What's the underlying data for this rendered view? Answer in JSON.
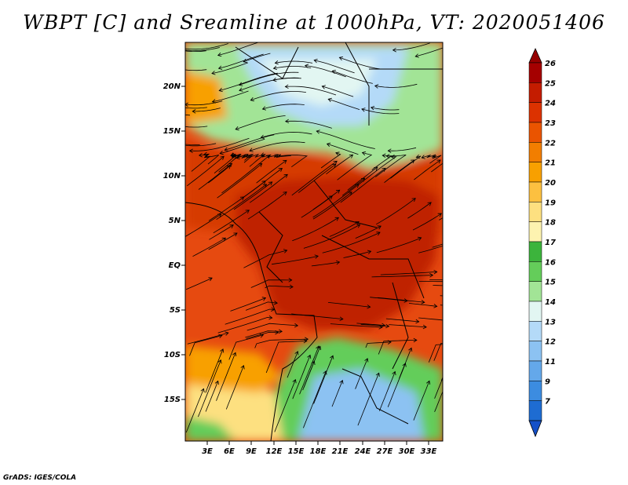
{
  "title": "WBPT [C] and Sreamline at 1000hPa, VT: 2020051406",
  "credit": "GrADS: IGES/COLA",
  "map": {
    "lat_labels": [
      "20N",
      "15N",
      "10N",
      "5N",
      "EQ",
      "5S",
      "10S",
      "15S"
    ],
    "lon_labels": [
      "3E",
      "6E",
      "9E",
      "12E",
      "15E",
      "18E",
      "21E",
      "24E",
      "27E",
      "30E",
      "33E"
    ]
  },
  "colorbar": {
    "levels": [
      {
        "label": "26",
        "color": "#a50000"
      },
      {
        "label": "25",
        "color": "#c41c00"
      },
      {
        "label": "24",
        "color": "#dc3200"
      },
      {
        "label": "23",
        "color": "#ea5400"
      },
      {
        "label": "22",
        "color": "#f27e00"
      },
      {
        "label": "21",
        "color": "#f8a000"
      },
      {
        "label": "20",
        "color": "#fcc040"
      },
      {
        "label": "19",
        "color": "#fde080"
      },
      {
        "label": "18",
        "color": "#fdf3b0"
      },
      {
        "label": "17",
        "color": "#3cb43c"
      },
      {
        "label": "16",
        "color": "#64cd5a"
      },
      {
        "label": "15",
        "color": "#a2e496"
      },
      {
        "label": "14",
        "color": "#e2f6f2"
      },
      {
        "label": "13",
        "color": "#b4daf8"
      },
      {
        "label": "12",
        "color": "#8cc2f2"
      },
      {
        "label": "11",
        "color": "#64a8ea"
      },
      {
        "label": "9",
        "color": "#3c8ce0"
      },
      {
        "label": "7",
        "color": "#1e6cd2"
      }
    ],
    "top_color": "#960000",
    "bottom_color": "#1450c8"
  },
  "fields": {
    "ocean_color": "#e64a10",
    "north_band_color": "#d63a06",
    "congo_core_color": "#bf2204",
    "sahel_light_green": "#a2e496",
    "sahel_blue": "#b4daf8",
    "sahel_pale": "#e2f6f2",
    "south_green": "#64cd5a",
    "south_blue": "#8cc2f2",
    "south_yellow": "#fde080",
    "south_orange": "#f8a000"
  }
}
